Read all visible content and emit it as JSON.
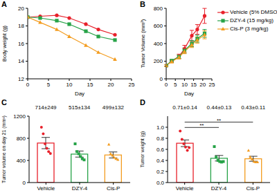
{
  "chart_data": [
    {
      "panel": "A",
      "type": "line",
      "x_label": "Day",
      "y_label": "Body weight (g)",
      "x": [
        0,
        3,
        7,
        10,
        14,
        17,
        21
      ],
      "xlim": [
        0,
        25
      ],
      "xticks": [
        0,
        5,
        10,
        15,
        20,
        25
      ],
      "ylim": [
        12,
        20
      ],
      "yticks": [
        12,
        14,
        16,
        18,
        20
      ],
      "series": [
        {
          "name": "Vehicle (5% DMSO)",
          "color": "#e8202a",
          "marker": "circle",
          "values": [
            19.0,
            19.1,
            19.2,
            18.9,
            18.2,
            17.6,
            17.0
          ]
        },
        {
          "name": "DZY-4 (15 mg/kg)",
          "color": "#27a348",
          "marker": "square",
          "values": [
            19.0,
            18.9,
            18.6,
            18.2,
            17.4,
            16.8,
            16.4
          ]
        },
        {
          "name": "Cis-P (3 mg/kg)",
          "color": "#f39c1f",
          "marker": "triangle",
          "values": [
            19.0,
            18.4,
            17.6,
            16.8,
            15.8,
            15.0,
            14.2
          ]
        }
      ]
    },
    {
      "panel": "B",
      "type": "line",
      "x_label": "Day",
      "y_label": "Tumor Volume (mm³)",
      "legend": "right",
      "x": [
        0,
        3,
        7,
        10,
        14,
        17,
        21
      ],
      "xlim": [
        0,
        25
      ],
      "xticks": [
        0,
        5,
        10,
        15,
        20,
        25
      ],
      "ylim": [
        0,
        800
      ],
      "yticks": [
        0,
        200,
        400,
        600,
        800
      ],
      "series": [
        {
          "name": "Vehicle (5% DMSO)",
          "color": "#e8202a",
          "marker": "circle",
          "values": [
            150,
            200,
            255,
            340,
            490,
            560,
            714
          ],
          "errors": [
            10,
            15,
            25,
            40,
            60,
            55,
            85
          ]
        },
        {
          "name": "DZY-4 (15 mg/kg)",
          "color": "#27a348",
          "marker": "square",
          "values": [
            150,
            205,
            250,
            320,
            400,
            455,
            515
          ],
          "errors": [
            10,
            15,
            20,
            30,
            35,
            40,
            45
          ]
        },
        {
          "name": "Cis-P (3 mg/kg)",
          "color": "#f39c1f",
          "marker": "triangle",
          "values": [
            150,
            195,
            245,
            310,
            385,
            440,
            499
          ],
          "errors": [
            10,
            15,
            20,
            25,
            30,
            35,
            45
          ]
        }
      ]
    },
    {
      "panel": "C",
      "type": "bar",
      "y_label": "Tumor volume on day 21 (mm³)",
      "categories": [
        "Vehicle",
        "DZY-4",
        "Cis-P"
      ],
      "values": [
        714,
        515,
        499
      ],
      "value_labels": [
        "714±249",
        "515±134",
        "499±132"
      ],
      "data_labels": true,
      "errors": [
        102,
        55,
        54
      ],
      "points": [
        [
          1000,
          880,
          700,
          620,
          560,
          524
        ],
        [
          700,
          560,
          520,
          470,
          430,
          410
        ],
        [
          690,
          520,
          490,
          450,
          430,
          414
        ]
      ],
      "colors": [
        "#e8202a",
        "#27a348",
        "#f39c1f"
      ],
      "ylim": [
        0,
        1200
      ],
      "yticks": [
        0,
        400,
        800,
        1200
      ]
    },
    {
      "panel": "D",
      "type": "bar",
      "y_label": "Tumor weight (g)",
      "categories": [
        "Vehicle",
        "DZY-4",
        "Cis-P"
      ],
      "values": [
        0.71,
        0.44,
        0.43
      ],
      "value_labels": [
        "0.71±0.14",
        "0.44±0.13",
        "0.43±0.11"
      ],
      "data_labels": true,
      "errors": [
        0.06,
        0.05,
        0.045
      ],
      "points": [
        [
          0.93,
          0.78,
          0.7,
          0.64,
          0.58,
          0.63
        ],
        [
          0.65,
          0.46,
          0.4,
          0.38,
          0.37,
          0.38
        ],
        [
          0.58,
          0.46,
          0.42,
          0.38,
          0.37,
          0.37
        ]
      ],
      "colors": [
        "#e8202a",
        "#27a348",
        "#f39c1f"
      ],
      "ylim": [
        0,
        1.2
      ],
      "yticks": [
        {
          "value": 0,
          "label": "0.0"
        },
        0.2,
        0.4,
        0.6,
        0.8,
        {
          "value": 1,
          "label": "1.0"
        }
      ],
      "significance": [
        {
          "label": "**",
          "groups": [
            "Vehicle",
            "DZY-4"
          ]
        },
        {
          "label": "**",
          "groups": [
            "Vehicle",
            "Cis-P"
          ]
        }
      ]
    }
  ]
}
